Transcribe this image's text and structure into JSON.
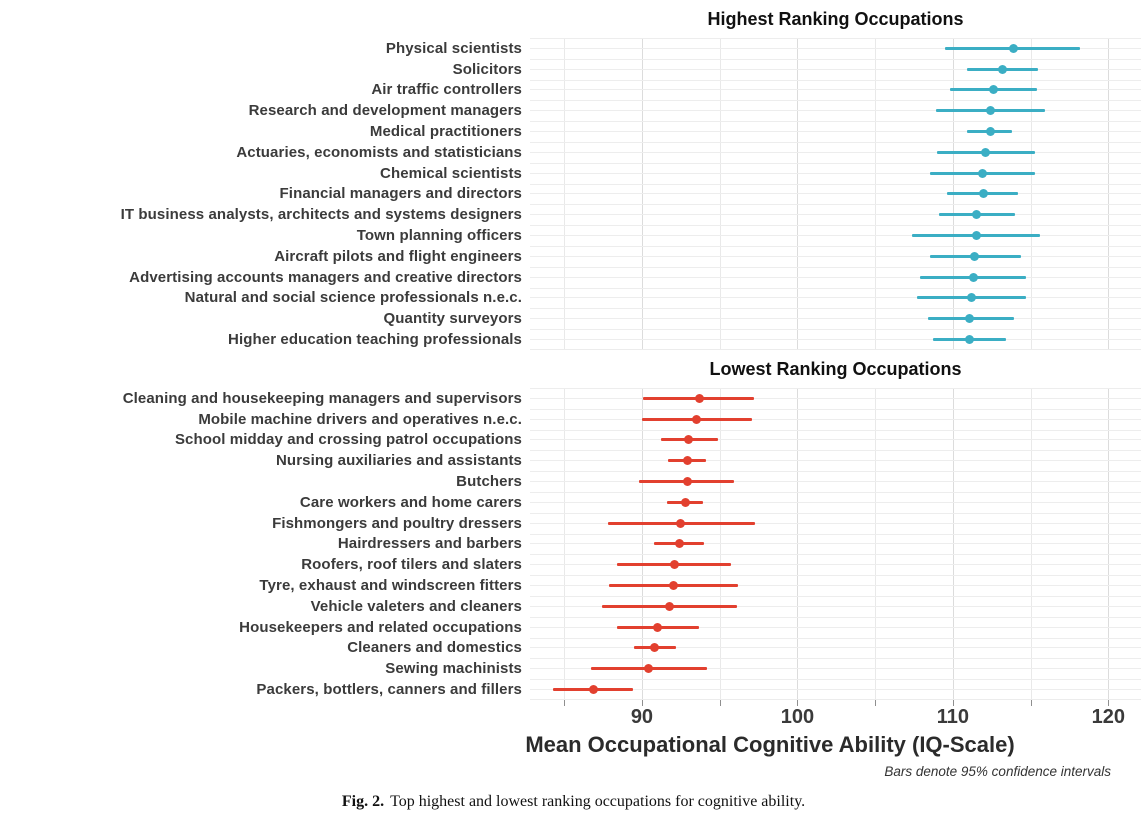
{
  "caption": {
    "prefix": "Fig. 2.",
    "text": "Top highest and lowest ranking occupations for cognitive ability."
  },
  "chart_data": {
    "type": "scatter",
    "subtype": "horizontal dot plot with 95% CI error bars, two panels",
    "xlabel": "Mean Occupational Cognitive Ability (IQ-Scale)",
    "note": "Bars denote 95% confidence intervals",
    "x_domain": [
      82.8,
      122.1
    ],
    "x_major_ticks": [
      90,
      100,
      110,
      120
    ],
    "x_minor_ticks": [
      85,
      95,
      105,
      115
    ],
    "grid": true,
    "panels": [
      {
        "title": "Highest Ranking Occupations",
        "color": "#3BAEC4",
        "rows": [
          {
            "label": "Physical scientists",
            "mean": 113.9,
            "ci_low": 109.5,
            "ci_high": 118.2
          },
          {
            "label": "Solicitors",
            "mean": 113.2,
            "ci_low": 110.9,
            "ci_high": 115.5
          },
          {
            "label": "Air traffic controllers",
            "mean": 112.6,
            "ci_low": 109.8,
            "ci_high": 115.4
          },
          {
            "label": "Research and development managers",
            "mean": 112.4,
            "ci_low": 108.9,
            "ci_high": 115.9
          },
          {
            "label": "Medical practitioners",
            "mean": 112.4,
            "ci_low": 110.9,
            "ci_high": 113.8
          },
          {
            "label": "Actuaries, economists and statisticians",
            "mean": 112.1,
            "ci_low": 109.0,
            "ci_high": 115.3
          },
          {
            "label": "Chemical scientists",
            "mean": 111.9,
            "ci_low": 108.5,
            "ci_high": 115.3
          },
          {
            "label": "Financial managers and directors",
            "mean": 112.0,
            "ci_low": 109.6,
            "ci_high": 114.2
          },
          {
            "label": "IT business analysts, architects and systems designers",
            "mean": 111.5,
            "ci_low": 109.1,
            "ci_high": 114.0
          },
          {
            "label": "Town planning officers",
            "mean": 111.5,
            "ci_low": 107.4,
            "ci_high": 115.6
          },
          {
            "label": "Aircraft pilots and flight engineers",
            "mean": 111.4,
            "ci_low": 108.5,
            "ci_high": 114.4
          },
          {
            "label": "Advertising accounts managers and creative directors",
            "mean": 111.3,
            "ci_low": 107.9,
            "ci_high": 114.7
          },
          {
            "label": "Natural and social science professionals n.e.c.",
            "mean": 111.2,
            "ci_low": 107.7,
            "ci_high": 114.7
          },
          {
            "label": "Quantity surveyors",
            "mean": 111.1,
            "ci_low": 108.4,
            "ci_high": 113.9
          },
          {
            "label": "Higher education teaching professionals",
            "mean": 111.1,
            "ci_low": 108.7,
            "ci_high": 113.4
          }
        ]
      },
      {
        "title": "Lowest Ranking Occupations",
        "color": "#E2402F",
        "rows": [
          {
            "label": "Cleaning and housekeeping managers and supervisors",
            "mean": 93.7,
            "ci_low": 90.1,
            "ci_high": 97.2
          },
          {
            "label": "Mobile machine drivers and operatives n.e.c.",
            "mean": 93.5,
            "ci_low": 90.0,
            "ci_high": 97.1
          },
          {
            "label": "School midday and crossing patrol occupations",
            "mean": 93.0,
            "ci_low": 91.2,
            "ci_high": 94.9
          },
          {
            "label": "Nursing auxiliaries and assistants",
            "mean": 92.9,
            "ci_low": 91.7,
            "ci_high": 94.1
          },
          {
            "label": "Butchers",
            "mean": 92.9,
            "ci_low": 89.8,
            "ci_high": 95.9
          },
          {
            "label": "Care workers and home carers",
            "mean": 92.8,
            "ci_low": 91.6,
            "ci_high": 93.9
          },
          {
            "label": "Fishmongers and poultry dressers",
            "mean": 92.5,
            "ci_low": 87.8,
            "ci_high": 97.3
          },
          {
            "label": "Hairdressers and barbers",
            "mean": 92.4,
            "ci_low": 90.8,
            "ci_high": 94.0
          },
          {
            "label": "Roofers, roof tilers and slaters",
            "mean": 92.1,
            "ci_low": 88.4,
            "ci_high": 95.7
          },
          {
            "label": "Tyre, exhaust and windscreen fitters",
            "mean": 92.0,
            "ci_low": 87.9,
            "ci_high": 96.2
          },
          {
            "label": "Vehicle valeters and cleaners",
            "mean": 91.8,
            "ci_low": 87.4,
            "ci_high": 96.1
          },
          {
            "label": "Housekeepers and related occupations",
            "mean": 91.0,
            "ci_low": 88.4,
            "ci_high": 93.7
          },
          {
            "label": "Cleaners and domestics",
            "mean": 90.8,
            "ci_low": 89.5,
            "ci_high": 92.2
          },
          {
            "label": "Sewing machinists",
            "mean": 90.4,
            "ci_low": 86.7,
            "ci_high": 94.2
          },
          {
            "label": "Packers, bottlers, canners and fillers",
            "mean": 86.9,
            "ci_low": 84.3,
            "ci_high": 89.4
          }
        ]
      }
    ]
  }
}
